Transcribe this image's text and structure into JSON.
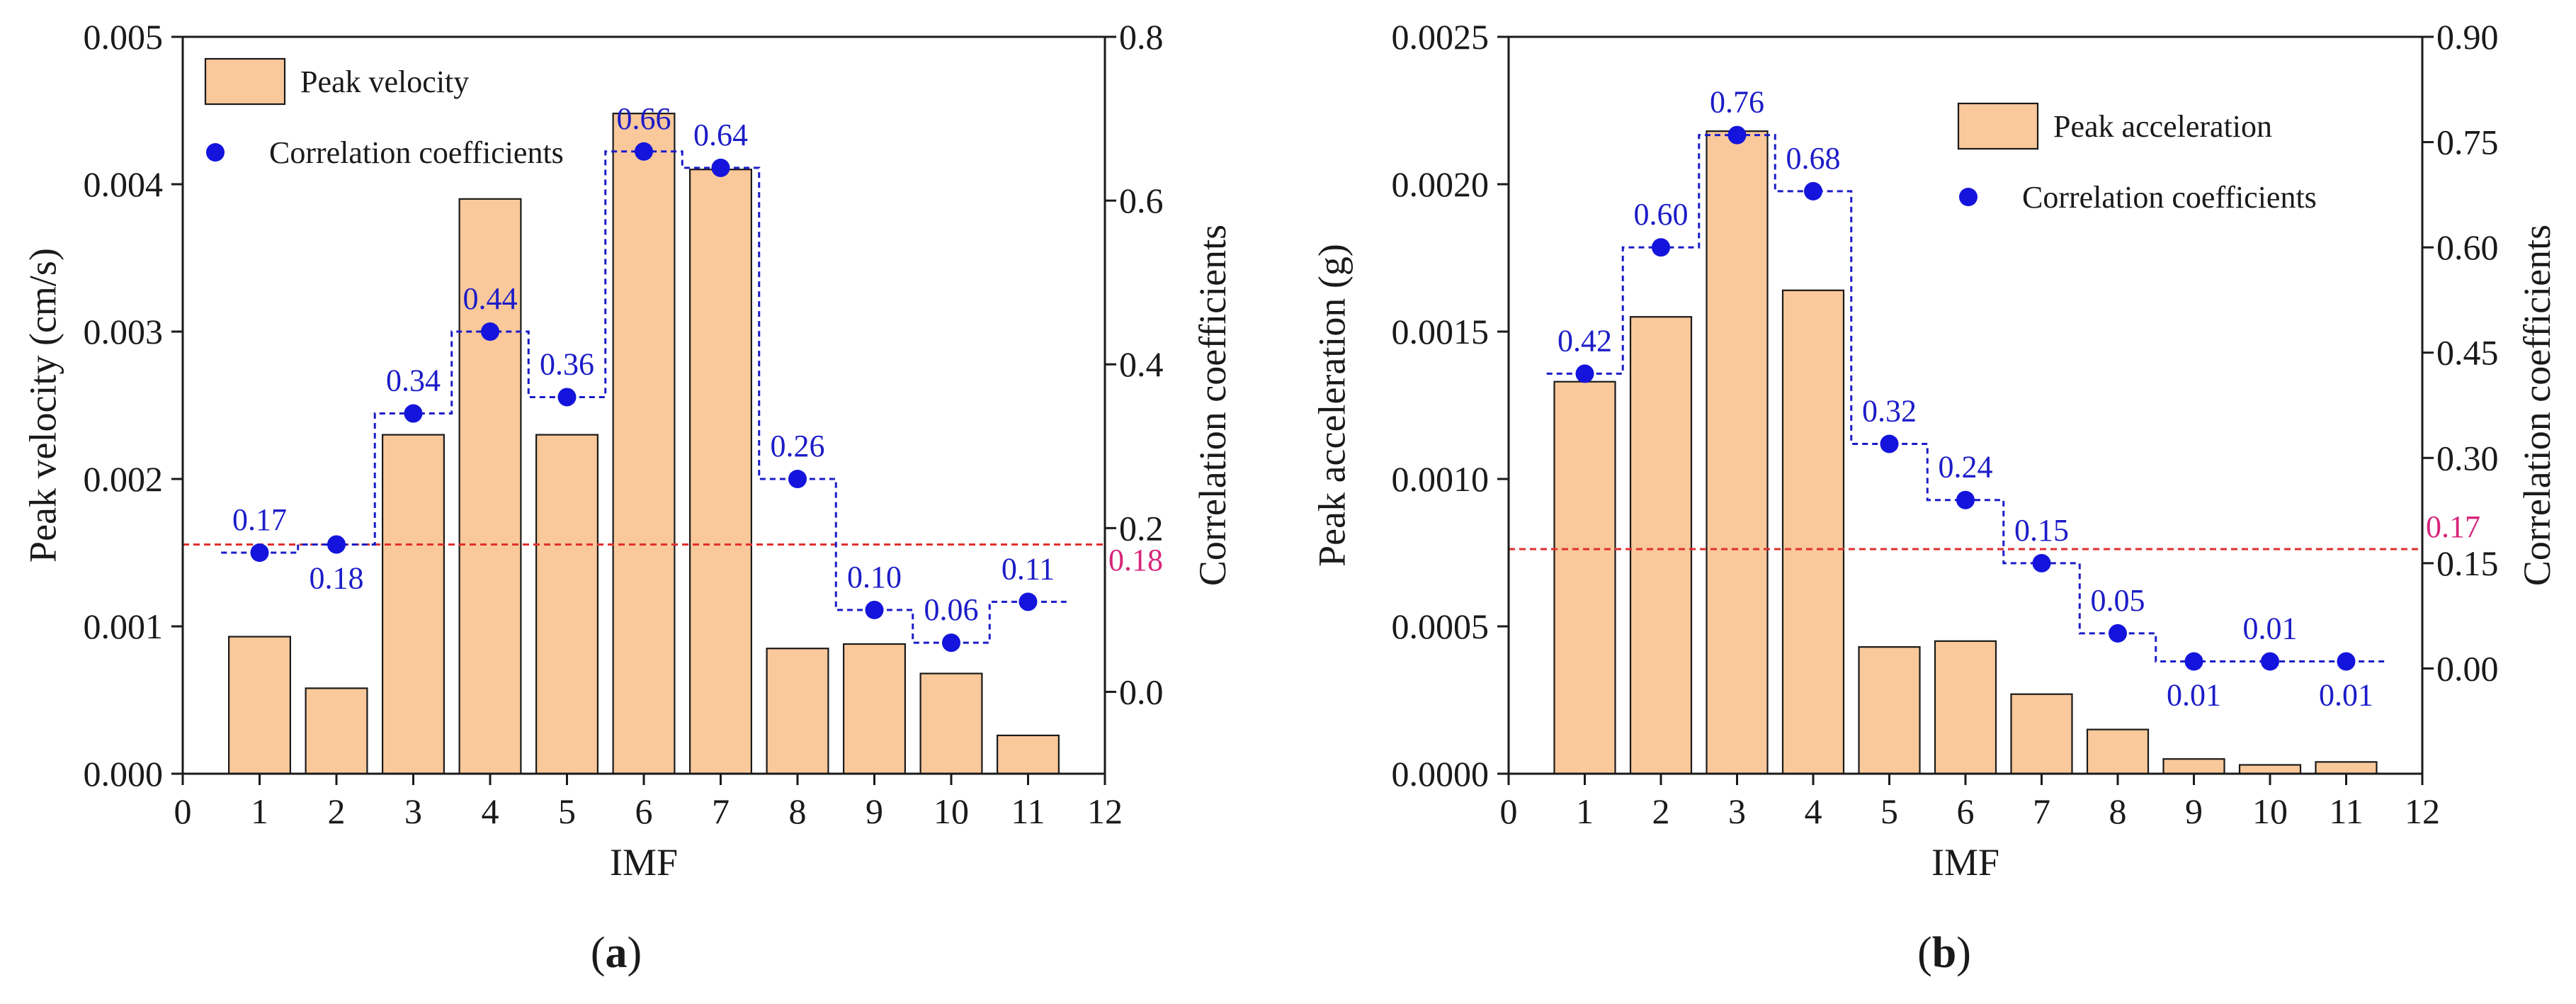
{
  "colors": {
    "bar_fill": "#f9c89b",
    "bar_stroke": "#1a1a1a",
    "point": "#1414dc",
    "step_line": "#1c1cc8",
    "threshold_line": "#e0302e",
    "threshold_label": "#d6257a",
    "label": "#1c1cc8"
  },
  "chart_data": [
    {
      "type": "bar",
      "panel_label_open": "(",
      "panel_label_letter": "a",
      "panel_label_close": ")",
      "xlabel": "IMF",
      "ylabel_left": "Peak velocity (cm/s)",
      "ylabel_right": "Correlation coefficients",
      "xlim": [
        0,
        12
      ],
      "x_ticks": [
        0,
        1,
        2,
        3,
        4,
        5,
        6,
        7,
        8,
        9,
        10,
        11,
        12
      ],
      "y_left_lim": [
        0,
        0.005
      ],
      "y_left_ticks": [
        "0.000",
        "0.001",
        "0.002",
        "0.003",
        "0.004",
        "0.005"
      ],
      "y_right_lim": [
        -0.1,
        0.8
      ],
      "y_right_ticks": [
        {
          "value": 0.0,
          "label": "0.0"
        },
        {
          "value": 0.2,
          "label": "0.2"
        },
        {
          "value": 0.4,
          "label": "0.4"
        },
        {
          "value": 0.6,
          "label": "0.6"
        },
        {
          "value": 0.8,
          "label": "0.8"
        }
      ],
      "legend": {
        "bar": "Peak velocity",
        "points": "Correlation coefficients",
        "position": "top-left"
      },
      "categories": [
        1,
        2,
        3,
        4,
        5,
        6,
        7,
        8,
        9,
        10,
        11
      ],
      "bars": [
        0.00093,
        0.00058,
        0.0023,
        0.0039,
        0.0023,
        0.00448,
        0.0041,
        0.00085,
        0.00088,
        0.00068,
        0.00026
      ],
      "correlation": [
        0.17,
        0.18,
        0.34,
        0.44,
        0.36,
        0.66,
        0.64,
        0.26,
        0.1,
        0.06,
        0.11
      ],
      "correlation_labels": [
        "0.17",
        "0.18",
        "0.34",
        "0.44",
        "0.36",
        "0.66",
        "0.64",
        "0.26",
        "0.10",
        "0.06",
        "0.11"
      ],
      "label_above": [
        true,
        false,
        true,
        true,
        true,
        true,
        true,
        true,
        true,
        true,
        true
      ],
      "threshold": {
        "value": 0.18,
        "label": "0.18"
      }
    },
    {
      "type": "bar",
      "panel_label_open": "(",
      "panel_label_letter": "b",
      "panel_label_close": ")",
      "xlabel": "IMF",
      "ylabel_left": "Peak acceleration (g)",
      "ylabel_right": "Correlation coefficients",
      "xlim": [
        0,
        12
      ],
      "x_ticks": [
        0,
        1,
        2,
        3,
        4,
        5,
        6,
        7,
        8,
        9,
        10,
        11,
        12
      ],
      "y_left_lim": [
        0,
        0.0025
      ],
      "y_left_ticks": [
        "0.0000",
        "0.0005",
        "0.0010",
        "0.0015",
        "0.0020",
        "0.0025"
      ],
      "y_right_lim": [
        -0.15,
        0.9
      ],
      "y_right_ticks": [
        {
          "value": 0.0,
          "label": "0.00"
        },
        {
          "value": 0.15,
          "label": "0.15"
        },
        {
          "value": 0.3,
          "label": "0.30"
        },
        {
          "value": 0.45,
          "label": "0.45"
        },
        {
          "value": 0.6,
          "label": "0.60"
        },
        {
          "value": 0.75,
          "label": "0.75"
        },
        {
          "value": 0.9,
          "label": "0.90"
        }
      ],
      "legend": {
        "bar": "Peak acceleration",
        "points": "Correlation coefficients",
        "position": "top-right"
      },
      "categories": [
        1,
        2,
        3,
        4,
        5,
        6,
        7,
        8,
        9,
        10,
        11
      ],
      "bars": [
        0.00133,
        0.00155,
        0.00218,
        0.00164,
        0.00043,
        0.00045,
        0.00027,
        0.00015,
        5e-05,
        3e-05,
        4e-05
      ],
      "correlation": [
        0.42,
        0.6,
        0.76,
        0.68,
        0.32,
        0.24,
        0.15,
        0.05,
        0.01,
        0.01,
        0.01
      ],
      "correlation_labels": [
        "0.42",
        "0.60",
        "0.76",
        "0.68",
        "0.32",
        "0.24",
        "0.15",
        "0.05",
        "0.01",
        "0.01",
        "0.01"
      ],
      "label_above": [
        true,
        true,
        true,
        true,
        true,
        true,
        true,
        true,
        false,
        true,
        false
      ],
      "threshold": {
        "value": 0.17,
        "label": "0.17"
      }
    }
  ]
}
